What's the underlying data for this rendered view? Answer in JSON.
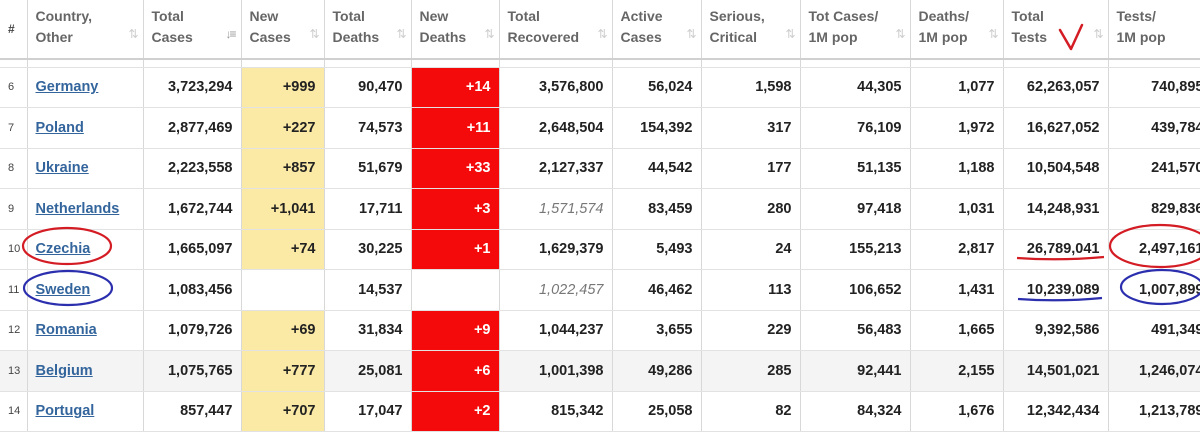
{
  "columns": [
    {
      "key": "idx",
      "label": "#",
      "sort": "",
      "sort_active": false
    },
    {
      "key": "country",
      "label": "Country,\nOther",
      "sort": "⇅",
      "sort_active": false
    },
    {
      "key": "total_cases",
      "label": "Total\nCases",
      "sort": "↓≡",
      "sort_active": true
    },
    {
      "key": "new_cases",
      "label": "New\nCases",
      "sort": "⇅",
      "sort_active": false
    },
    {
      "key": "total_deaths",
      "label": "Total\nDeaths",
      "sort": "⇅",
      "sort_active": false
    },
    {
      "key": "new_deaths",
      "label": "New\nDeaths",
      "sort": "⇅",
      "sort_active": false
    },
    {
      "key": "total_recovered",
      "label": "Total\nRecovered",
      "sort": "⇅",
      "sort_active": false
    },
    {
      "key": "active_cases",
      "label": "Active\nCases",
      "sort": "⇅",
      "sort_active": false
    },
    {
      "key": "serious",
      "label": "Serious,\nCritical",
      "sort": "⇅",
      "sort_active": false
    },
    {
      "key": "cases_per_1m",
      "label": "Tot Cases/\n1M pop",
      "sort": "⇅",
      "sort_active": false
    },
    {
      "key": "deaths_per_1m",
      "label": "Deaths/\n1M pop",
      "sort": "⇅",
      "sort_active": false
    },
    {
      "key": "total_tests",
      "label": "Total\nTests",
      "sort": "⇅",
      "sort_active": false
    },
    {
      "key": "tests_per_1m",
      "label": "Tests/\n1M pop",
      "sort": "",
      "sort_active": false
    }
  ],
  "rows": [
    {
      "idx": "6",
      "country": "Germany",
      "total_cases": "3,723,294",
      "new_cases": "+999",
      "total_deaths": "90,470",
      "new_deaths": "+14",
      "total_recovered": "3,576,800",
      "recovered_italic": false,
      "active_cases": "56,024",
      "serious": "1,598",
      "cases_per_1m": "44,305",
      "deaths_per_1m": "1,077",
      "total_tests": "62,263,057",
      "tests_per_1m": "740,895"
    },
    {
      "idx": "7",
      "country": "Poland",
      "total_cases": "2,877,469",
      "new_cases": "+227",
      "total_deaths": "74,573",
      "new_deaths": "+11",
      "total_recovered": "2,648,504",
      "recovered_italic": false,
      "active_cases": "154,392",
      "serious": "317",
      "cases_per_1m": "76,109",
      "deaths_per_1m": "1,972",
      "total_tests": "16,627,052",
      "tests_per_1m": "439,784"
    },
    {
      "idx": "8",
      "country": "Ukraine",
      "total_cases": "2,223,558",
      "new_cases": "+857",
      "total_deaths": "51,679",
      "new_deaths": "+33",
      "total_recovered": "2,127,337",
      "recovered_italic": false,
      "active_cases": "44,542",
      "serious": "177",
      "cases_per_1m": "51,135",
      "deaths_per_1m": "1,188",
      "total_tests": "10,504,548",
      "tests_per_1m": "241,570"
    },
    {
      "idx": "9",
      "country": "Netherlands",
      "total_cases": "1,672,744",
      "new_cases": "+1,041",
      "total_deaths": "17,711",
      "new_deaths": "+3",
      "total_recovered": "1,571,574",
      "recovered_italic": true,
      "active_cases": "83,459",
      "serious": "280",
      "cases_per_1m": "97,418",
      "deaths_per_1m": "1,031",
      "total_tests": "14,248,931",
      "tests_per_1m": "829,836"
    },
    {
      "idx": "10",
      "country": "Czechia",
      "total_cases": "1,665,097",
      "new_cases": "+74",
      "total_deaths": "30,225",
      "new_deaths": "+1",
      "total_recovered": "1,629,379",
      "recovered_italic": false,
      "active_cases": "5,493",
      "serious": "24",
      "cases_per_1m": "155,213",
      "deaths_per_1m": "2,817",
      "total_tests": "26,789,041",
      "tests_per_1m": "2,497,161"
    },
    {
      "idx": "11",
      "country": "Sweden",
      "total_cases": "1,083,456",
      "new_cases": "",
      "total_deaths": "14,537",
      "new_deaths": "",
      "total_recovered": "1,022,457",
      "recovered_italic": true,
      "active_cases": "46,462",
      "serious": "113",
      "cases_per_1m": "106,652",
      "deaths_per_1m": "1,431",
      "total_tests": "10,239,089",
      "tests_per_1m": "1,007,899"
    },
    {
      "idx": "12",
      "country": "Romania",
      "total_cases": "1,079,726",
      "new_cases": "+69",
      "total_deaths": "31,834",
      "new_deaths": "+9",
      "total_recovered": "1,044,237",
      "recovered_italic": false,
      "active_cases": "3,655",
      "serious": "229",
      "cases_per_1m": "56,483",
      "deaths_per_1m": "1,665",
      "total_tests": "9,392,586",
      "tests_per_1m": "491,349"
    },
    {
      "idx": "13",
      "country": "Belgium",
      "total_cases": "1,075,765",
      "new_cases": "+777",
      "total_deaths": "25,081",
      "new_deaths": "+6",
      "total_recovered": "1,001,398",
      "recovered_italic": false,
      "active_cases": "49,286",
      "serious": "285",
      "cases_per_1m": "92,441",
      "deaths_per_1m": "2,155",
      "total_tests": "14,501,021",
      "tests_per_1m": "1,246,074"
    },
    {
      "idx": "14",
      "country": "Portugal",
      "total_cases": "857,447",
      "new_cases": "+707",
      "total_deaths": "17,047",
      "new_deaths": "+2",
      "total_recovered": "815,342",
      "recovered_italic": false,
      "active_cases": "25,058",
      "serious": "82",
      "cases_per_1m": "84,324",
      "deaths_per_1m": "1,676",
      "total_tests": "12,342,434",
      "tests_per_1m": "1,213,789"
    }
  ],
  "annotations": {
    "red_color": "#d41c24",
    "blue_color": "#2b2fae",
    "checkmark": "red-checkmark",
    "czechia": "red ellipse around country name, red underline under total tests, red ellipse around tests per 1M",
    "sweden": "blue ellipse around country name, blue underline under total tests, blue ellipse around tests per 1M"
  }
}
